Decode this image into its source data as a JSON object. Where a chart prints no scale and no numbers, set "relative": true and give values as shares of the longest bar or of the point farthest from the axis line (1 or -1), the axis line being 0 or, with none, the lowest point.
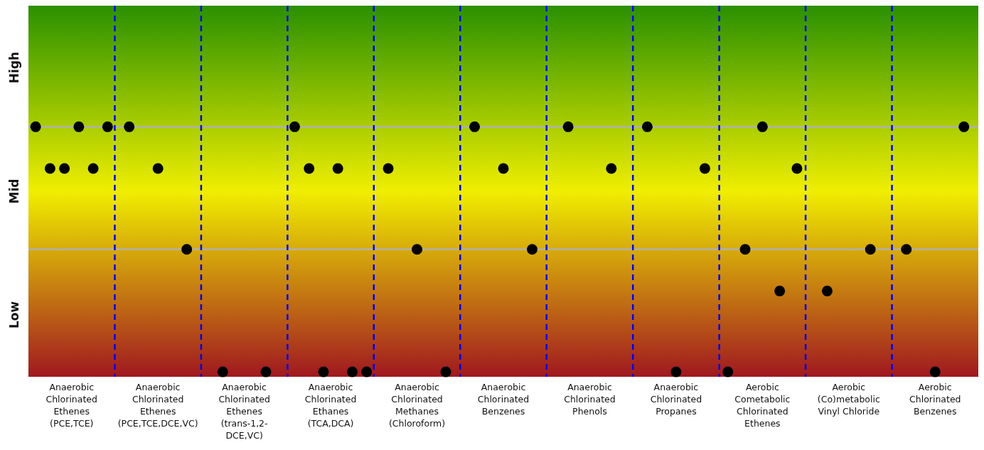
{
  "chart_data": {
    "type": "scatter",
    "marker": "circle",
    "relative": true,
    "categories": [
      "Anaerobic Chlorinated Ethenes (PCE,TCE)",
      "Anaerobic Chlorinated Ethenes (PCE,TCE,DCE,VC)",
      "Anaerobic Chlorinated Ethenes (trans-1,2-DCE,VC)",
      "Anaerobic Chlorinated Ethanes (TCA,DCA)",
      "Anaerobic Chlorinated Methanes (Chloroform)",
      "Anaerobic Chlorinated Benzenes",
      "Anaerobic Chlorinated Phenols",
      "Anaerobic Chlorinated Propanes",
      "Aerobic Cometabolic Chlorinated Ethenes",
      "Aerobic (Co)metabolic Vinyl Chloride",
      "Aerobic Chlorinated Benzenes"
    ],
    "annotations": [
      "High",
      "Mid",
      "Low"
    ],
    "ref_lines": [
      {
        "axis": "y",
        "value": 0.5,
        "color": "#b0b0b0"
      },
      {
        "axis": "y",
        "value": 1,
        "color": "#b0b0b0"
      }
    ],
    "series": [
      {
        "color": "#000000",
        "values": [
          1,
          1,
          0,
          1,
          0.83,
          1,
          1,
          1,
          0,
          0.33,
          0.5
        ]
      },
      {
        "color": "#000000",
        "values": [
          0.83,
          0.83,
          0,
          0.83,
          0.5,
          0.83,
          0.83,
          0,
          0.5,
          0.5,
          0
        ]
      },
      {
        "color": "#000000",
        "values": [
          0.83,
          0.5,
          null,
          0,
          0,
          0.5,
          null,
          0.83,
          1,
          null,
          1
        ]
      },
      {
        "color": "#000000",
        "values": [
          1,
          null,
          null,
          0.83,
          null,
          null,
          null,
          null,
          0.33,
          null,
          null
        ]
      },
      {
        "color": "#000000",
        "values": [
          0.83,
          null,
          null,
          0,
          null,
          null,
          null,
          null,
          0.83,
          null,
          null
        ]
      },
      {
        "color": "#000000",
        "values": [
          1,
          null,
          null,
          0,
          null,
          null,
          null,
          null,
          null,
          null,
          null
        ]
      }
    ]
  }
}
